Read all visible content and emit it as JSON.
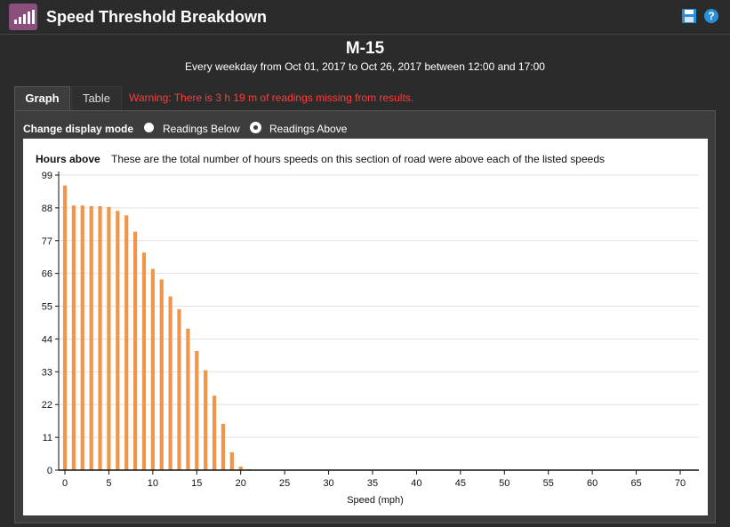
{
  "window": {
    "title": "Speed Threshold Breakdown",
    "save_icon": "save-icon",
    "help_icon": "help-icon",
    "help_glyph": "?"
  },
  "header": {
    "road": "M-15",
    "period": "Every weekday from Oct 01, 2017 to Oct 26, 2017 between 12:00 and 17:00"
  },
  "tabs": [
    {
      "label": "Graph",
      "active": true
    },
    {
      "label": "Table",
      "active": false
    }
  ],
  "warning": "Warning: There is 3 h 19 m of readings missing from results.",
  "display_mode": {
    "label": "Change display mode",
    "options": [
      {
        "label": "Readings Below",
        "selected": false
      },
      {
        "label": "Readings Above",
        "selected": true
      }
    ]
  },
  "colors": {
    "bar": "#f0954a",
    "accent": "#8a4f7d",
    "warning": "#ff3c3c",
    "help": "#2a8fd6"
  },
  "chart_data": {
    "type": "bar",
    "title": "Hours above",
    "subtitle": "These are the total number of hours speeds on this section of road were above each of the listed speeds",
    "xlabel": "Speed (mph)",
    "ylabel": "",
    "xlim": [
      0,
      70
    ],
    "ylim": [
      0,
      99
    ],
    "x_ticks": [
      0,
      5,
      10,
      15,
      20,
      25,
      30,
      35,
      40,
      45,
      50,
      55,
      60,
      65,
      70
    ],
    "y_ticks": [
      0,
      11,
      22,
      33,
      44,
      55,
      66,
      77,
      88,
      99
    ],
    "grid": true,
    "x": [
      0,
      1,
      2,
      3,
      4,
      5,
      6,
      7,
      8,
      9,
      10,
      11,
      12,
      13,
      14,
      15,
      16,
      17,
      18,
      19,
      20,
      21
    ],
    "values": [
      95.5,
      88.8,
      88.8,
      88.6,
      88.6,
      88.3,
      87.0,
      85.5,
      80.0,
      73.0,
      67.5,
      64.0,
      58.3,
      54.0,
      47.5,
      40.0,
      33.5,
      25.0,
      15.5,
      6.0,
      1.2,
      0.3
    ]
  }
}
